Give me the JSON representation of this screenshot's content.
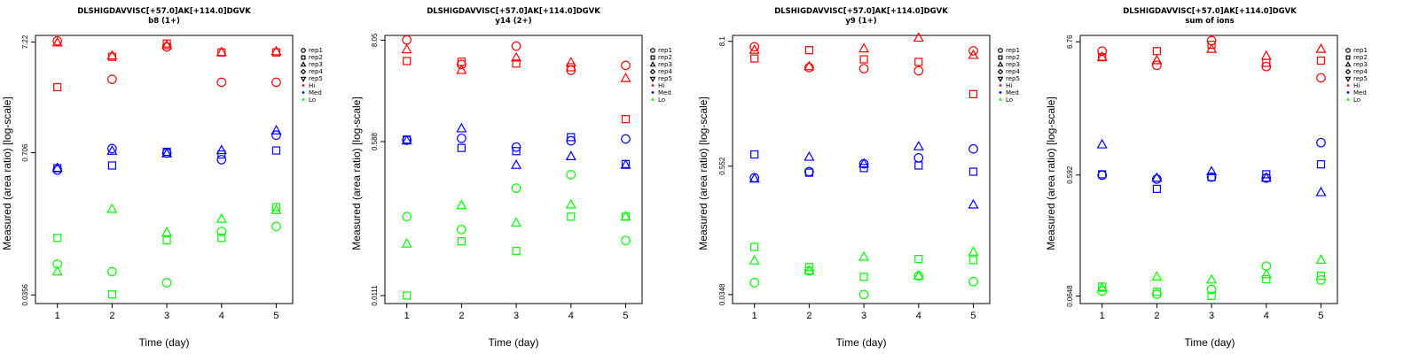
{
  "colors": {
    "Hi": "#ff0000",
    "Med": "#0000ff",
    "Lo": "#00ff00"
  },
  "legend": {
    "shapes": [
      {
        "label": "rep1",
        "marker": "circle"
      },
      {
        "label": "rep2",
        "marker": "square"
      },
      {
        "label": "rep3",
        "marker": "triangle-up"
      },
      {
        "label": "rep4",
        "marker": "diamond"
      },
      {
        "label": "rep5",
        "marker": "triangle-down"
      }
    ],
    "groups": [
      {
        "label": "Hi",
        "color": "#ff0000"
      },
      {
        "label": "Med",
        "color": "#0000ff"
      },
      {
        "label": "Lo",
        "color": "#00ff00"
      }
    ]
  },
  "chart_data": [
    {
      "type": "scatter",
      "title": "DLSHIGDAVVISC[+57.0]AK[+114.0]DGVK",
      "subtitle": "b8 (1+)",
      "xlabel": "Time (day)",
      "ylabel": "Measured (area ratio) [log-scale]",
      "x_ticks": [
        "1",
        "2",
        "3",
        "4",
        "5"
      ],
      "y_scale": "log",
      "y_ticks": [
        "7.22",
        "0.706",
        "0.0356"
      ],
      "xlim": [
        0.6,
        5.3
      ],
      "ylim": [
        0.0297,
        8.3
      ],
      "series": [
        {
          "group": "Hi",
          "rep": "rep1",
          "x": [
            1,
            2,
            3,
            4,
            5
          ],
          "y": [
            7.4,
            3.3,
            6.5,
            3.1,
            3.1
          ]
        },
        {
          "group": "Hi",
          "rep": "rep2",
          "x": [
            1,
            2,
            3,
            4,
            5
          ],
          "y": [
            2.8,
            5.3,
            7.0,
            5.8,
            5.8
          ]
        },
        {
          "group": "Hi",
          "rep": "rep3",
          "x": [
            1,
            2,
            3,
            4,
            5
          ],
          "y": [
            7.1,
            5.4,
            6.7,
            5.8,
            5.9
          ]
        },
        {
          "group": "Med",
          "rep": "rep1",
          "x": [
            1,
            2,
            3,
            4,
            5
          ],
          "y": [
            0.49,
            0.77,
            0.7,
            0.61,
            1.02
          ]
        },
        {
          "group": "Med",
          "rep": "rep2",
          "x": [
            1,
            2,
            3,
            4,
            5
          ],
          "y": [
            0.51,
            0.54,
            0.72,
            0.68,
            0.74
          ]
        },
        {
          "group": "Med",
          "rep": "rep3",
          "x": [
            1,
            2,
            3,
            4,
            5
          ],
          "y": [
            0.51,
            0.73,
            0.69,
            0.74,
            1.12
          ]
        },
        {
          "group": "Lo",
          "rep": "rep1",
          "x": [
            1,
            2,
            3,
            4,
            5
          ],
          "y": [
            0.068,
            0.058,
            0.046,
            0.135,
            0.15
          ]
        },
        {
          "group": "Lo",
          "rep": "rep2",
          "x": [
            1,
            2,
            3,
            4,
            5
          ],
          "y": [
            0.118,
            0.036,
            0.112,
            0.118,
            0.225
          ]
        },
        {
          "group": "Lo",
          "rep": "rep3",
          "x": [
            1,
            2,
            3,
            4,
            5
          ],
          "y": [
            0.058,
            0.215,
            0.132,
            0.175,
            0.21
          ]
        }
      ]
    },
    {
      "type": "scatter",
      "title": "DLSHIGDAVVISC[+57.0]AK[+114.0]DGVK",
      "subtitle": "y14 (2+)",
      "xlabel": "Time (day)",
      "ylabel": "Measured (area ratio) [log-scale]",
      "x_ticks": [
        "1",
        "2",
        "3",
        "4",
        "5"
      ],
      "y_scale": "log",
      "y_ticks": [
        "8.05",
        "0.588",
        "0.0111"
      ],
      "xlim": [
        0.6,
        5.3
      ],
      "ylim": [
        0.00903,
        9.1
      ],
      "series": [
        {
          "group": "Hi",
          "rep": "rep1",
          "x": [
            1,
            2,
            3,
            4,
            5
          ],
          "y": [
            8.1,
            4.3,
            6.9,
            3.7,
            4.2
          ]
        },
        {
          "group": "Hi",
          "rep": "rep2",
          "x": [
            1,
            2,
            3,
            4,
            5
          ],
          "y": [
            4.7,
            4.6,
            4.4,
            4.0,
            1.05
          ]
        },
        {
          "group": "Hi",
          "rep": "rep3",
          "x": [
            1,
            2,
            3,
            4,
            5
          ],
          "y": [
            6.3,
            3.7,
            5.1,
            4.5,
            3.0
          ]
        },
        {
          "group": "Med",
          "rep": "rep1",
          "x": [
            1,
            2,
            3,
            4,
            5
          ],
          "y": [
            0.61,
            0.64,
            0.51,
            0.6,
            0.63
          ]
        },
        {
          "group": "Med",
          "rep": "rep2",
          "x": [
            1,
            2,
            3,
            4,
            5
          ],
          "y": [
            0.62,
            0.5,
            0.46,
            0.66,
            0.33
          ]
        },
        {
          "group": "Med",
          "rep": "rep3",
          "x": [
            1,
            2,
            3,
            4,
            5
          ],
          "y": [
            0.6,
            0.82,
            0.32,
            0.4,
            0.32
          ]
        },
        {
          "group": "Lo",
          "rep": "rep1",
          "x": [
            1,
            2,
            3,
            4,
            5
          ],
          "y": [
            0.085,
            0.061,
            0.177,
            0.25,
            0.046
          ]
        },
        {
          "group": "Lo",
          "rep": "rep2",
          "x": [
            1,
            2,
            3,
            4,
            5
          ],
          "y": [
            0.0111,
            0.045,
            0.035,
            0.085,
            0.085
          ]
        },
        {
          "group": "Lo",
          "rep": "rep3",
          "x": [
            1,
            2,
            3,
            4,
            5
          ],
          "y": [
            0.042,
            0.113,
            0.072,
            0.115,
            0.085
          ]
        }
      ]
    },
    {
      "type": "scatter",
      "title": "DLSHIGDAVVISC[+57.0]AK[+114.0]DGVK",
      "subtitle": "y9 (1+)",
      "xlabel": "Time (day)",
      "ylabel": "Measured (area ratio) [log-scale]",
      "x_ticks": [
        "1",
        "2",
        "3",
        "4",
        "5"
      ],
      "y_scale": "log",
      "y_ticks": [
        "8.1",
        "0.552",
        "0.0348"
      ],
      "xlim": [
        0.6,
        5.3
      ],
      "ylim": [
        0.0287,
        9.2
      ],
      "series": [
        {
          "group": "Hi",
          "rep": "rep1",
          "x": [
            1,
            2,
            3,
            4,
            5
          ],
          "y": [
            7.2,
            4.6,
            4.5,
            4.3,
            6.6
          ]
        },
        {
          "group": "Hi",
          "rep": "rep2",
          "x": [
            1,
            2,
            3,
            4,
            5
          ],
          "y": [
            5.6,
            6.7,
            5.5,
            5.2,
            2.6
          ]
        },
        {
          "group": "Hi",
          "rep": "rep3",
          "x": [
            1,
            2,
            3,
            4,
            5
          ],
          "y": [
            6.7,
            4.7,
            6.9,
            8.7,
            6.0
          ]
        },
        {
          "group": "Med",
          "rep": "rep1",
          "x": [
            1,
            2,
            3,
            4,
            5
          ],
          "y": [
            0.43,
            0.49,
            0.58,
            0.66,
            0.8
          ]
        },
        {
          "group": "Med",
          "rep": "rep2",
          "x": [
            1,
            2,
            3,
            4,
            5
          ],
          "y": [
            0.71,
            0.48,
            0.53,
            0.56,
            0.49
          ]
        },
        {
          "group": "Med",
          "rep": "rep3",
          "x": [
            1,
            2,
            3,
            4,
            5
          ],
          "y": [
            0.42,
            0.67,
            0.58,
            0.84,
            0.24
          ]
        },
        {
          "group": "Lo",
          "rep": "rep1",
          "x": [
            1,
            2,
            3,
            4,
            5
          ],
          "y": [
            0.045,
            0.058,
            0.0348,
            0.052,
            0.046
          ]
        },
        {
          "group": "Lo",
          "rep": "rep2",
          "x": [
            1,
            2,
            3,
            4,
            5
          ],
          "y": [
            0.097,
            0.063,
            0.051,
            0.075,
            0.073
          ]
        },
        {
          "group": "Lo",
          "rep": "rep3",
          "x": [
            1,
            2,
            3,
            4,
            5
          ],
          "y": [
            0.072,
            0.058,
            0.078,
            0.052,
            0.087
          ]
        }
      ]
    },
    {
      "type": "scatter",
      "title": "DLSHIGDAVVISC[+57.0]AK[+114.0]DGVK",
      "subtitle": "sum of ions",
      "xlabel": "Time (day)",
      "ylabel": "Measured (area ratio) [log-scale]",
      "x_ticks": [
        "1",
        "2",
        "3",
        "4",
        "5"
      ],
      "y_scale": "log",
      "y_ticks": [
        "6.76",
        "0.592",
        "0.0648"
      ],
      "xlim": [
        0.6,
        5.3
      ],
      "ylim": [
        0.0565,
        7.6
      ],
      "series": [
        {
          "group": "Hi",
          "rep": "rep1",
          "x": [
            1,
            2,
            3,
            4,
            5
          ],
          "y": [
            5.7,
            4.4,
            6.9,
            4.3,
            3.5
          ]
        },
        {
          "group": "Hi",
          "rep": "rep2",
          "x": [
            1,
            2,
            3,
            4,
            5
          ],
          "y": [
            5.1,
            5.7,
            6.4,
            4.6,
            4.8
          ]
        },
        {
          "group": "Hi",
          "rep": "rep3",
          "x": [
            1,
            2,
            3,
            4,
            5
          ],
          "y": [
            5.1,
            4.8,
            5.9,
            5.2,
            5.9
          ]
        },
        {
          "group": "Med",
          "rep": "rep1",
          "x": [
            1,
            2,
            3,
            4,
            5
          ],
          "y": [
            0.59,
            0.55,
            0.57,
            0.56,
            1.07
          ]
        },
        {
          "group": "Med",
          "rep": "rep2",
          "x": [
            1,
            2,
            3,
            4,
            5
          ],
          "y": [
            0.6,
            0.46,
            0.57,
            0.6,
            0.72
          ]
        },
        {
          "group": "Med",
          "rep": "rep3",
          "x": [
            1,
            2,
            3,
            4,
            5
          ],
          "y": [
            1.03,
            0.56,
            0.63,
            0.56,
            0.43
          ]
        },
        {
          "group": "Lo",
          "rep": "rep1",
          "x": [
            1,
            2,
            3,
            4,
            5
          ],
          "y": [
            0.071,
            0.067,
            0.073,
            0.112,
            0.087
          ]
        },
        {
          "group": "Lo",
          "rep": "rep2",
          "x": [
            1,
            2,
            3,
            4,
            5
          ],
          "y": [
            0.077,
            0.07,
            0.065,
            0.088,
            0.094
          ]
        },
        {
          "group": "Lo",
          "rep": "rep3",
          "x": [
            1,
            2,
            3,
            4,
            5
          ],
          "y": [
            0.075,
            0.092,
            0.087,
            0.096,
            0.125
          ]
        }
      ]
    }
  ]
}
